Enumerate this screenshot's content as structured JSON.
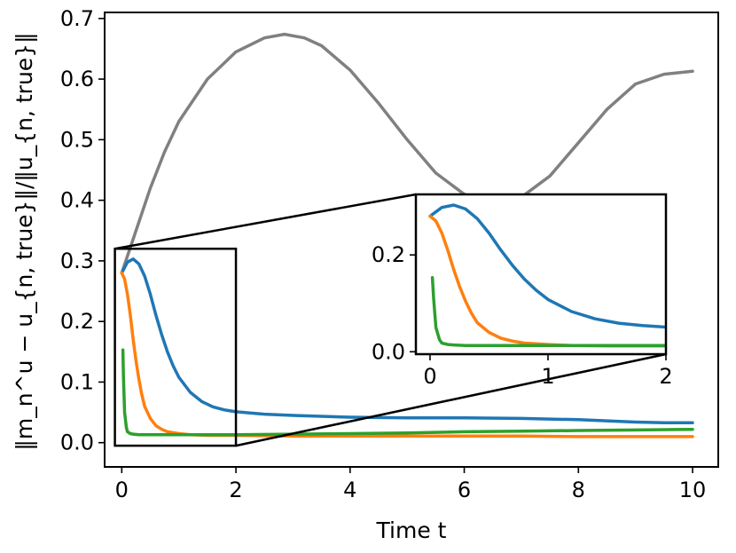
{
  "chart_data": {
    "type": "line",
    "title": "",
    "xlabel": "Time t",
    "ylabel": "‖m_n^u − u_{n, true}‖/‖u_{n, true}‖",
    "xlim": [
      -0.3,
      10.45
    ],
    "ylim": [
      -0.04,
      0.71
    ],
    "xticks": [
      0,
      2,
      4,
      6,
      8,
      10
    ],
    "xtick_labels": [
      "0",
      "2",
      "4",
      "6",
      "8",
      "10"
    ],
    "yticks": [
      0.0,
      0.1,
      0.2,
      0.3,
      0.4,
      0.5,
      0.6,
      0.7
    ],
    "ytick_labels": [
      "0.0",
      "0.1",
      "0.2",
      "0.3",
      "0.4",
      "0.5",
      "0.6",
      "0.7"
    ],
    "grid": false,
    "series": [
      {
        "name": "gray",
        "color": "#808080",
        "x": [
          0,
          0.25,
          0.5,
          0.75,
          1.0,
          1.5,
          2.0,
          2.5,
          2.85,
          3.2,
          3.5,
          4.0,
          4.5,
          5.0,
          5.5,
          6.0,
          6.5,
          6.75,
          7.0,
          7.5,
          8.0,
          8.5,
          9.0,
          9.5,
          10.0
        ],
        "y": [
          0.28,
          0.35,
          0.42,
          0.48,
          0.53,
          0.6,
          0.645,
          0.668,
          0.674,
          0.668,
          0.655,
          0.615,
          0.56,
          0.5,
          0.445,
          0.41,
          0.395,
          0.397,
          0.405,
          0.44,
          0.495,
          0.55,
          0.592,
          0.608,
          0.613
        ]
      },
      {
        "name": "blue",
        "color": "#1f77b4",
        "x": [
          0,
          0.1,
          0.2,
          0.3,
          0.4,
          0.5,
          0.6,
          0.7,
          0.8,
          0.9,
          1.0,
          1.2,
          1.4,
          1.6,
          1.8,
          2.0,
          2.5,
          3.0,
          4.0,
          5.0,
          6.0,
          7.0,
          8.0,
          8.5,
          9.0,
          9.5,
          10.0
        ],
        "y": [
          0.28,
          0.298,
          0.303,
          0.295,
          0.275,
          0.245,
          0.21,
          0.178,
          0.15,
          0.127,
          0.108,
          0.083,
          0.068,
          0.059,
          0.054,
          0.051,
          0.047,
          0.045,
          0.042,
          0.041,
          0.041,
          0.04,
          0.038,
          0.036,
          0.034,
          0.033,
          0.033
        ]
      },
      {
        "name": "orange",
        "color": "#ff7f0e",
        "x": [
          0,
          0.05,
          0.1,
          0.15,
          0.2,
          0.25,
          0.3,
          0.35,
          0.4,
          0.5,
          0.6,
          0.7,
          0.8,
          1.0,
          1.2,
          1.5,
          2.0,
          3.0,
          4.0,
          5.0,
          6.0,
          7.0,
          8.0,
          9.0,
          10.0
        ],
        "y": [
          0.28,
          0.27,
          0.245,
          0.21,
          0.17,
          0.135,
          0.105,
          0.08,
          0.06,
          0.04,
          0.028,
          0.022,
          0.018,
          0.015,
          0.013,
          0.012,
          0.012,
          0.011,
          0.011,
          0.011,
          0.011,
          0.011,
          0.01,
          0.01,
          0.01
        ]
      },
      {
        "name": "green",
        "color": "#2ca02c",
        "x": [
          0.02,
          0.03,
          0.05,
          0.08,
          0.1,
          0.15,
          0.2,
          0.3,
          0.5,
          0.8,
          1.0,
          1.5,
          2.0,
          3.0,
          4.0,
          5.0,
          6.0,
          7.0,
          8.0,
          9.0,
          10.0
        ],
        "y": [
          0.153,
          0.11,
          0.05,
          0.025,
          0.018,
          0.015,
          0.014,
          0.013,
          0.013,
          0.013,
          0.013,
          0.013,
          0.013,
          0.014,
          0.015,
          0.016,
          0.018,
          0.019,
          0.02,
          0.021,
          0.022
        ]
      }
    ],
    "inset": {
      "xlim": [
        -0.12,
        2.0
      ],
      "ylim": [
        -0.005,
        0.325
      ],
      "xticks": [
        0,
        1,
        2
      ],
      "xtick_labels": [
        "0",
        "1",
        "2"
      ],
      "yticks": [
        0.0,
        0.2
      ],
      "ytick_labels": [
        "0.0",
        "0.2"
      ],
      "zoom_region": {
        "x": [
          -0.12,
          2.0
        ],
        "y": [
          -0.005,
          0.32
        ]
      }
    }
  }
}
